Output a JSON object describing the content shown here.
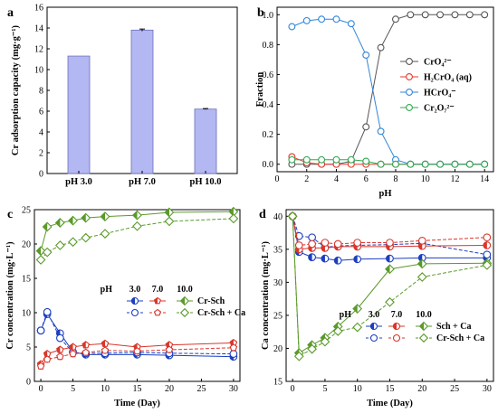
{
  "chart_data": [
    {
      "panel": "a",
      "type": "bar",
      "categories": [
        "pH 3.0",
        "pH 7.0",
        "pH 10.0"
      ],
      "values": [
        11.3,
        13.8,
        6.2
      ],
      "errors": [
        0.0,
        0.1,
        0.05
      ],
      "ylabel": "Cr adsorption capacity (mg·g⁻¹)",
      "xlabel": "",
      "ylim": [
        0,
        16
      ],
      "yticks": [
        0,
        2,
        4,
        6,
        8,
        10,
        12,
        14,
        16
      ],
      "color": "#b3b8f2"
    },
    {
      "panel": "b",
      "type": "line",
      "x": [
        1,
        2,
        3,
        4,
        5,
        6,
        7,
        8,
        9,
        10,
        11,
        12,
        13,
        14
      ],
      "xlabel": "pH",
      "ylabel": "Fraction",
      "xlim": [
        0,
        14.6
      ],
      "ylim": [
        -0.05,
        1.05
      ],
      "xticks": [
        0,
        2,
        4,
        6,
        8,
        10,
        12,
        14
      ],
      "yticks": [
        0.0,
        0.2,
        0.4,
        0.6,
        0.8,
        1.0
      ],
      "series": [
        {
          "name": "CrO₄²⁻",
          "color": "#555555",
          "values": [
            0.0,
            0.0,
            0.0,
            0.0,
            0.02,
            0.25,
            0.78,
            0.97,
            1.0,
            1.0,
            1.0,
            1.0,
            1.0,
            1.0
          ]
        },
        {
          "name": "H₂CrO₄ (aq)",
          "color": "#e8362a",
          "values": [
            0.05,
            0.01,
            0.0,
            0.0,
            0.0,
            0.0,
            0.0,
            0.0,
            0.0,
            0.0,
            0.0,
            0.0,
            0.0,
            0.0
          ]
        },
        {
          "name": "HCrO₄⁻",
          "color": "#2f86d8",
          "values": [
            0.92,
            0.96,
            0.97,
            0.97,
            0.94,
            0.73,
            0.22,
            0.03,
            0.0,
            0.0,
            0.0,
            0.0,
            0.0,
            0.0
          ]
        },
        {
          "name": "Cr₂O₇²⁻",
          "color": "#2fa84f",
          "values": [
            0.03,
            0.03,
            0.03,
            0.03,
            0.03,
            0.02,
            0.0,
            0.0,
            0.0,
            0.0,
            0.0,
            0.0,
            0.0,
            0.0
          ]
        }
      ],
      "legend_position": "right"
    },
    {
      "panel": "c",
      "type": "line",
      "x": [
        0,
        1,
        3,
        5,
        7,
        10,
        15,
        20,
        30
      ],
      "xlabel": "Time (Day)",
      "ylabel": "Cr concentration (mg·L⁻¹)",
      "xlim": [
        -1,
        31
      ],
      "ylim": [
        0,
        25
      ],
      "xticks": [
        0,
        5,
        10,
        15,
        20,
        25,
        30
      ],
      "yticks": [
        0,
        5,
        10,
        15,
        20,
        25
      ],
      "legend_header": [
        "pH",
        "3.0",
        "7.0",
        "10.0"
      ],
      "legend_rows": [
        "Cr-Sch",
        "Cr-Sch + Ca"
      ],
      "series": [
        {
          "name": "pH 3.0 Cr-Sch",
          "color": "#1c3fbf",
          "filled": true,
          "marker": "circle",
          "values": [
            7.4,
            9.8,
            7.0,
            4.3,
            3.9,
            3.9,
            3.9,
            3.8,
            3.6
          ]
        },
        {
          "name": "pH 3.0 Cr-Sch + Ca",
          "color": "#1c3fbf",
          "filled": false,
          "marker": "circle",
          "values": [
            7.4,
            10.1,
            6.3,
            4.2,
            4.1,
            4.1,
            4.2,
            4.1,
            4.0
          ]
        },
        {
          "name": "pH 7.0 Cr-Sch",
          "color": "#d9362b",
          "filled": true,
          "marker": "pentagon",
          "values": [
            2.5,
            4.0,
            4.6,
            5.0,
            5.3,
            5.5,
            5.0,
            5.3,
            5.6
          ]
        },
        {
          "name": "pH 7.0 Cr-Sch + Ca",
          "color": "#d9362b",
          "filled": false,
          "marker": "pentagon",
          "values": [
            2.2,
            3.2,
            3.6,
            4.0,
            4.2,
            4.5,
            4.4,
            4.6,
            4.9
          ]
        },
        {
          "name": "pH 10.0 Cr-Sch",
          "color": "#5a9a2a",
          "filled": true,
          "marker": "diamond",
          "values": [
            19.0,
            22.5,
            23.1,
            23.4,
            23.8,
            24.0,
            24.2,
            24.6,
            24.7
          ]
        },
        {
          "name": "pH 10.0 Cr-Sch + Ca",
          "color": "#5a9a2a",
          "filled": false,
          "marker": "diamond",
          "values": [
            17.7,
            18.8,
            19.8,
            20.3,
            20.9,
            21.5,
            22.6,
            23.3,
            23.7
          ]
        }
      ],
      "errors_visible": true
    },
    {
      "panel": "d",
      "type": "line",
      "x": [
        0,
        1,
        3,
        5,
        7,
        10,
        15,
        20,
        30
      ],
      "xlabel": "Time (Day)",
      "ylabel": "Ca concentration (mg·L⁻¹)",
      "xlim": [
        -1,
        31
      ],
      "ylim": [
        15,
        41
      ],
      "xticks": [
        0,
        5,
        10,
        15,
        20,
        25,
        30
      ],
      "yticks": [
        15,
        20,
        25,
        30,
        35,
        40
      ],
      "legend_header": [
        "pH",
        "3.0",
        "7.0",
        "10.0"
      ],
      "legend_rows": [
        "Sch + Ca",
        "Cr-Sch + Ca"
      ],
      "series": [
        {
          "name": "pH 3.0 Sch + Ca",
          "color": "#1c3fbf",
          "filled": true,
          "marker": "circle",
          "values": [
            40.0,
            34.6,
            33.8,
            33.6,
            33.3,
            33.5,
            33.6,
            33.7,
            33.7
          ]
        },
        {
          "name": "pH 3.0 Cr-Sch + Ca",
          "color": "#1c3fbf",
          "filled": false,
          "marker": "circle",
          "values": [
            40.0,
            37.0,
            36.8,
            35.3,
            35.5,
            35.6,
            35.7,
            35.9,
            34.2
          ]
        },
        {
          "name": "pH 7.0 Sch + Ca",
          "color": "#d9362b",
          "filled": true,
          "marker": "circle",
          "values": [
            40.0,
            35.0,
            35.2,
            35.2,
            35.4,
            35.4,
            35.4,
            35.5,
            35.6
          ]
        },
        {
          "name": "pH 7.0 Cr-Sch + Ca",
          "color": "#d9362b",
          "filled": false,
          "marker": "circle",
          "values": [
            40.0,
            35.6,
            35.8,
            36.0,
            35.8,
            36.0,
            36.0,
            36.3,
            36.8
          ]
        },
        {
          "name": "pH 10.0 Sch + Ca",
          "color": "#5a9a2a",
          "filled": true,
          "marker": "diamond",
          "values": [
            40.0,
            19.3,
            20.5,
            21.6,
            23.3,
            26.0,
            32.0,
            32.8,
            32.9
          ]
        },
        {
          "name": "pH 10.0 Cr-Sch + Ca",
          "color": "#5a9a2a",
          "filled": false,
          "marker": "diamond",
          "values": [
            40.0,
            18.8,
            19.9,
            21.0,
            22.6,
            23.2,
            27.0,
            30.8,
            32.6
          ]
        }
      ],
      "errors_visible": true
    }
  ]
}
